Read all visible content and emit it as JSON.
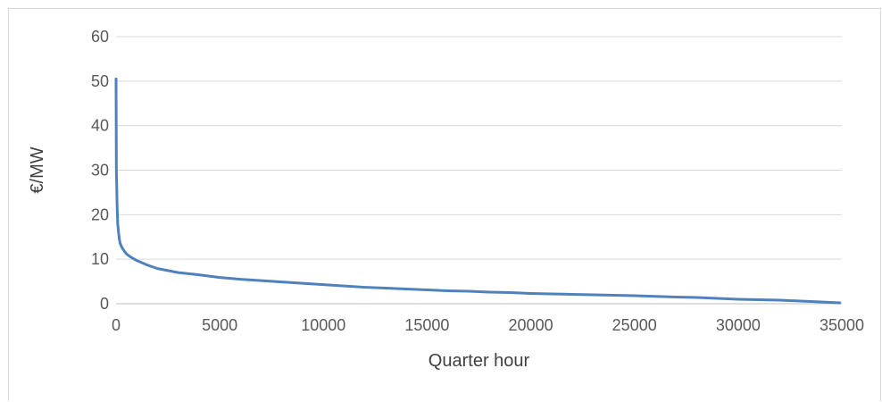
{
  "chart_data": {
    "type": "line",
    "title": "",
    "xlabel": "Quarter hour",
    "ylabel": "€/MW",
    "xlim": [
      0,
      35000
    ],
    "ylim": [
      0,
      60
    ],
    "x_ticks": [
      0,
      5000,
      10000,
      15000,
      20000,
      25000,
      30000,
      35000
    ],
    "y_ticks": [
      0,
      10,
      20,
      30,
      40,
      50,
      60
    ],
    "grid": "horizontal",
    "legend": "none",
    "series": [
      {
        "color": "#4f81bd",
        "x": [
          0,
          15,
          30,
          50,
          80,
          120,
          160,
          200,
          300,
          400,
          500,
          700,
          1000,
          1500,
          2000,
          3000,
          4000,
          5000,
          6000,
          7000,
          8000,
          9000,
          10000,
          11000,
          12000,
          13000,
          14000,
          15000,
          16000,
          17000,
          18000,
          19000,
          20000,
          21000,
          22000,
          23000,
          24000,
          25000,
          26000,
          27000,
          28000,
          29000,
          30000,
          31000,
          32000,
          33000,
          34000,
          34900
        ],
        "y": [
          50.5,
          30,
          27,
          22,
          18,
          16,
          14.5,
          13.5,
          12.5,
          11.8,
          11.2,
          10.5,
          9.7,
          8.7,
          7.9,
          7.0,
          6.5,
          5.9,
          5.5,
          5.2,
          4.9,
          4.6,
          4.3,
          4.0,
          3.7,
          3.5,
          3.3,
          3.1,
          2.9,
          2.8,
          2.6,
          2.5,
          2.3,
          2.2,
          2.1,
          2.0,
          1.9,
          1.8,
          1.65,
          1.5,
          1.4,
          1.2,
          1.0,
          0.9,
          0.8,
          0.6,
          0.4,
          0.2
        ]
      }
    ]
  }
}
